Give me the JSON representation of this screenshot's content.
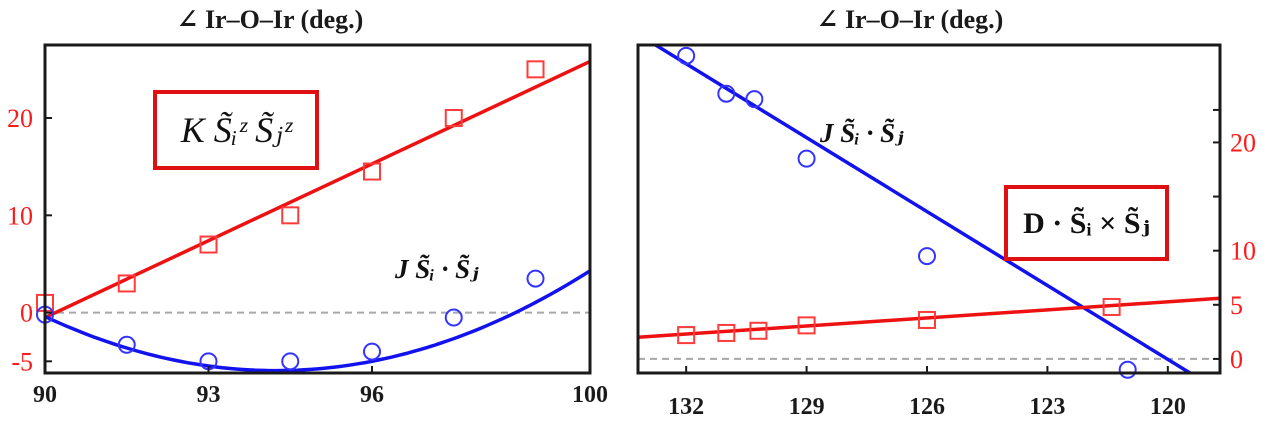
{
  "chart_data": [
    {
      "type": "scatter",
      "title": "∠ Ir–O–Ir (deg.)",
      "xlim": [
        90,
        100
      ],
      "ylim": [
        -6.2,
        27.5
      ],
      "x_ticks": [
        90,
        93,
        96,
        100
      ],
      "y_ticks": [
        -5,
        0,
        10,
        20
      ],
      "y_tick_labels": [
        "-5",
        "0",
        "10",
        "20"
      ],
      "y_ticks_unlabeled": [],
      "y_axis_side": "left",
      "zero_line": 0,
      "annotations": [
        {
          "id": "k",
          "text": "K S̃ᵢᶻ S̃ⱼᶻ",
          "boxed": true,
          "color": "#e01010"
        },
        {
          "id": "j",
          "text": "J S̃ᵢ · S̃ⱼ",
          "boxed": false,
          "color": "#111111"
        }
      ],
      "series": [
        {
          "color": "#ff2a2a",
          "marker": "square",
          "x": [
            90,
            91.5,
            93,
            94.5,
            96,
            97.5,
            99
          ],
          "y": [
            1.0,
            3.0,
            7.0,
            10.0,
            14.5,
            20.0,
            25.0
          ],
          "fit": {
            "kind": "linear",
            "x": [
              90,
              100
            ],
            "y": [
              -0.5,
              25.8
            ]
          }
        },
        {
          "color": "#2020ff",
          "marker": "circle",
          "x": [
            90,
            91.5,
            93,
            94.5,
            96,
            97.5,
            99
          ],
          "y": [
            -0.2,
            -3.3,
            -5.0,
            -5.0,
            -4.0,
            -0.5,
            3.5
          ],
          "fit": {
            "kind": "quadratic",
            "a": 0.309,
            "b": -58.24,
            "c": 2738.3,
            "x": [
              90,
              100
            ]
          }
        }
      ]
    },
    {
      "type": "scatter",
      "title": "∠ Ir–O–Ir (deg.)",
      "xlim": [
        133.2,
        118.7
      ],
      "ylim": [
        -1.3,
        29.0
      ],
      "x_ticks": [
        132,
        129,
        126,
        123,
        120
      ],
      "y_ticks": [
        0,
        5,
        10,
        20
      ],
      "y_tick_labels": [
        "0",
        "5",
        "10",
        "20"
      ],
      "y_ticks_unlabeled": [
        15,
        23
      ],
      "y_axis_side": "right",
      "zero_line": 0,
      "annotations": [
        {
          "id": "j",
          "text": "J S̃ᵢ · S̃ⱼ",
          "boxed": false,
          "color": "#111111"
        },
        {
          "id": "d",
          "text": "D · S̃ᵢ × S̃ⱼ",
          "boxed": true,
          "color": "#e01010"
        }
      ],
      "series": [
        {
          "color": "#2020ff",
          "marker": "circle",
          "x": [
            132,
            131,
            130.3,
            129,
            126,
            121
          ],
          "y": [
            28.0,
            24.5,
            24.0,
            18.5,
            9.5,
            -1.0
          ],
          "fit": {
            "kind": "linear",
            "x": [
              133.2,
              118.7
            ],
            "y": [
              30.0,
              -3.0
            ]
          }
        },
        {
          "color": "#ff2a2a",
          "marker": "square",
          "x": [
            132,
            131,
            130.2,
            129,
            126,
            121.4
          ],
          "y": [
            2.2,
            2.4,
            2.6,
            3.1,
            3.6,
            4.8
          ],
          "fit": {
            "kind": "linear",
            "x": [
              133.2,
              118.7
            ],
            "y": [
              2.0,
              5.6
            ]
          }
        }
      ]
    }
  ]
}
